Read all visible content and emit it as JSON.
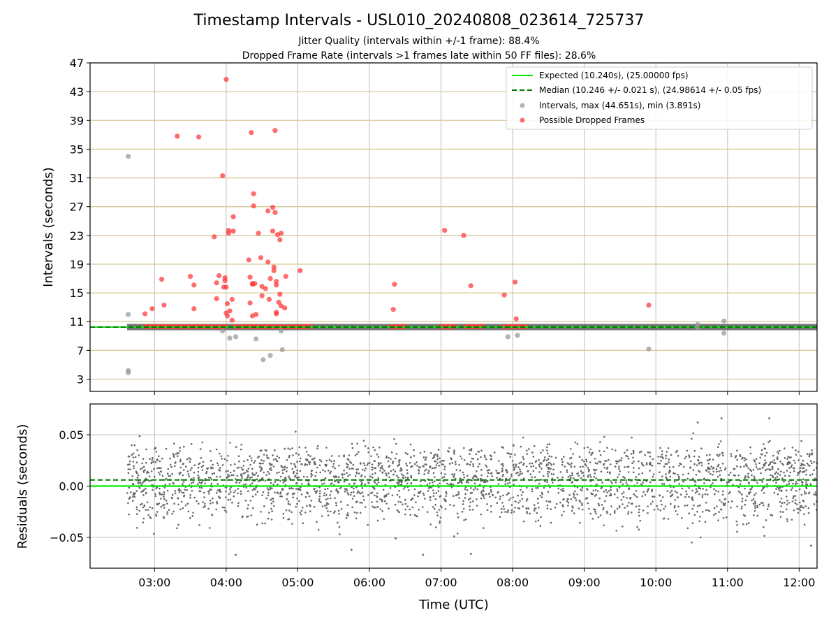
{
  "chart_data": {
    "type": "scatter",
    "title": "Timestamp Intervals - USL010_20240808_023614_725737",
    "subtitle_lines": [
      "Jitter Quality (intervals within +/-1 frame): 88.4%",
      "Dropped Frame Rate (intervals >1 frames late within 50 FF files): 28.6%"
    ],
    "xlabel": "Time (UTC)",
    "x_ticks": [
      "03:00",
      "04:00",
      "05:00",
      "06:00",
      "07:00",
      "08:00",
      "09:00",
      "10:00",
      "11:00",
      "12:00"
    ],
    "x_range_hours": [
      2.1,
      12.25
    ],
    "panels": [
      {
        "name": "intervals",
        "ylabel": "Intervals (seconds)",
        "ylim": [
          1.3,
          47
        ],
        "y_ticks": [
          3,
          7,
          11,
          15,
          19,
          23,
          27,
          31,
          35,
          39,
          43,
          47
        ],
        "grid": "horizontal gridlines olive, vertical gridlines grey",
        "legend": {
          "placement": "top-right",
          "entries": [
            {
              "label": "Expected (10.240s), (25.00000 fps)",
              "style": "line",
              "color": "#00ee00"
            },
            {
              "label": "Median (10.246 +/- 0.021 s), (24.98614 +/- 0.05 fps)",
              "style": "dashed-line",
              "color": "#007a00"
            },
            {
              "label": "Intervals, max (44.651s), min (3.891s)",
              "style": "dot",
              "color": "#999999"
            },
            {
              "label": "Possible Dropped Frames",
              "style": "dot",
              "color": "#ff3b3b"
            }
          ]
        },
        "expected_value": 10.24,
        "median_value": 10.246,
        "series": [
          {
            "name": "Intervals, max (44.651s), min (3.891s)",
            "color": "#999999",
            "baseline_band": {
              "x_start": "02:37",
              "x_end": "12:15",
              "y": 10.24
            },
            "points": [
              [
                "02:38",
                34
              ],
              [
                "02:38",
                12
              ],
              [
                "02:38",
                4.2
              ],
              [
                "02:38",
                3.9
              ],
              [
                "03:57",
                9.7
              ],
              [
                "04:03",
                8.7
              ],
              [
                "04:08",
                8.9
              ],
              [
                "04:25",
                8.6
              ],
              [
                "04:31",
                5.7
              ],
              [
                "04:37",
                6.3
              ],
              [
                "04:47",
                7.1
              ],
              [
                "04:46",
                9.7
              ],
              [
                "07:56",
                8.9
              ],
              [
                "08:04",
                9.1
              ],
              [
                "09:54",
                7.2
              ],
              [
                "10:35",
                10.6
              ],
              [
                "10:35",
                10.1
              ],
              [
                "10:57",
                11.1
              ],
              [
                "10:57",
                9.4
              ]
            ]
          },
          {
            "name": "Possible Dropped Frames",
            "color": "#ff3b3b",
            "baseline_clusters": [
              {
                "x_start": "02:52",
                "x_end": "04:00",
                "y": 10.3
              },
              {
                "x_start": "04:07",
                "x_end": "05:12",
                "y": 10.3
              },
              {
                "x_start": "06:18",
                "x_end": "06:30",
                "y": 10.3
              },
              {
                "x_start": "07:00",
                "x_end": "07:12",
                "y": 10.3
              },
              {
                "x_start": "07:20",
                "x_end": "07:35",
                "y": 10.3
              },
              {
                "x_start": "07:52",
                "x_end": "08:12",
                "y": 10.3
              }
            ],
            "points": [
              [
                "02:52",
                12.1
              ],
              [
                "02:58",
                12.8
              ],
              [
                "03:06",
                16.9
              ],
              [
                "03:08",
                13.3
              ],
              [
                "03:19",
                36.8
              ],
              [
                "03:30",
                17.3
              ],
              [
                "03:33",
                16.1
              ],
              [
                "03:33",
                12.8
              ],
              [
                "03:37",
                36.7
              ],
              [
                "03:50",
                22.8
              ],
              [
                "03:52",
                16.4
              ],
              [
                "03:52",
                14.2
              ],
              [
                "03:54",
                17.4
              ],
              [
                "03:57",
                31.3
              ],
              [
                "03:58",
                15.8
              ],
              [
                "03:59",
                16.7
              ],
              [
                "03:59",
                17.1
              ],
              [
                "04:00",
                44.7
              ],
              [
                "04:00",
                15.8
              ],
              [
                "04:00",
                12.2
              ],
              [
                "04:01",
                13.5
              ],
              [
                "04:01",
                11.8
              ],
              [
                "04:02",
                23.7
              ],
              [
                "04:02",
                23.3
              ],
              [
                "04:03",
                12.5
              ],
              [
                "04:05",
                14.1
              ],
              [
                "04:05",
                11.2
              ],
              [
                "04:06",
                25.6
              ],
              [
                "04:06",
                23.6
              ],
              [
                "04:19",
                19.6
              ],
              [
                "04:20",
                17.2
              ],
              [
                "04:20",
                13.6
              ],
              [
                "04:21",
                37.3
              ],
              [
                "04:22",
                16.3
              ],
              [
                "04:22",
                16.2
              ],
              [
                "04:22",
                11.8
              ],
              [
                "04:23",
                28.8
              ],
              [
                "04:23",
                27.1
              ],
              [
                "04:24",
                16.3
              ],
              [
                "04:25",
                12.0
              ],
              [
                "04:27",
                23.3
              ],
              [
                "04:29",
                19.9
              ],
              [
                "04:30",
                15.9
              ],
              [
                "04:30",
                14.6
              ],
              [
                "04:33",
                15.6
              ],
              [
                "04:35",
                19.3
              ],
              [
                "04:35",
                26.4
              ],
              [
                "04:36",
                14.1
              ],
              [
                "04:37",
                17.0
              ],
              [
                "04:39",
                26.9
              ],
              [
                "04:39",
                23.6
              ],
              [
                "04:40",
                18.6
              ],
              [
                "04:40",
                18.1
              ],
              [
                "04:41",
                37.6
              ],
              [
                "04:41",
                26.2
              ],
              [
                "04:42",
                16.6
              ],
              [
                "04:42",
                16.1
              ],
              [
                "04:42",
                12.3
              ],
              [
                "04:42",
                12.1
              ],
              [
                "04:43",
                23.1
              ],
              [
                "04:44",
                13.7
              ],
              [
                "04:45",
                22.4
              ],
              [
                "04:45",
                14.8
              ],
              [
                "04:46",
                23.3
              ],
              [
                "04:46",
                13.2
              ],
              [
                "04:49",
                12.9
              ],
              [
                "04:50",
                17.3
              ],
              [
                "05:02",
                18.1
              ],
              [
                "06:20",
                12.7
              ],
              [
                "06:21",
                16.2
              ],
              [
                "07:03",
                23.7
              ],
              [
                "07:19",
                23.0
              ],
              [
                "07:25",
                16.0
              ],
              [
                "07:53",
                14.7
              ],
              [
                "08:02",
                16.5
              ],
              [
                "08:03",
                11.4
              ],
              [
                "09:54",
                13.3
              ]
            ]
          }
        ]
      },
      {
        "name": "residuals",
        "ylabel": "Residuals (seconds)",
        "ylim": [
          -0.08,
          0.08
        ],
        "y_ticks": [
          0.05,
          0.0,
          -0.05
        ],
        "y_tick_labels": [
          "0.05",
          "0.00",
          "−0.05"
        ],
        "expected_value": 0.0,
        "median_offset": 0.006,
        "series": [
          {
            "name": "Residuals",
            "color": "#666666",
            "distribution": {
              "x_start": "02:37",
              "x_end": "12:15",
              "count": 2600,
              "modes": [
                {
                  "center": 0.02,
                  "spread": 0.01,
                  "weight": 0.45
                },
                {
                  "center": 0.0,
                  "spread": 0.008,
                  "weight": 0.3
                },
                {
                  "center": -0.02,
                  "spread": 0.01,
                  "weight": 0.25
                }
              ],
              "range": [
                -0.068,
                0.067
              ]
            },
            "outliers": [
              [
                "04:08",
                -0.067
              ],
              [
                "05:35",
                -0.047
              ],
              [
                "05:45",
                -0.062
              ],
              [
                "06:22",
                -0.051
              ],
              [
                "06:45",
                -0.067
              ],
              [
                "07:11",
                -0.049
              ],
              [
                "07:25",
                -0.066
              ],
              [
                "10:30",
                -0.055
              ],
              [
                "10:35",
                0.062
              ],
              [
                "10:55",
                0.066
              ],
              [
                "11:35",
                0.066
              ],
              [
                "12:10",
                -0.058
              ]
            ]
          }
        ]
      }
    ]
  }
}
